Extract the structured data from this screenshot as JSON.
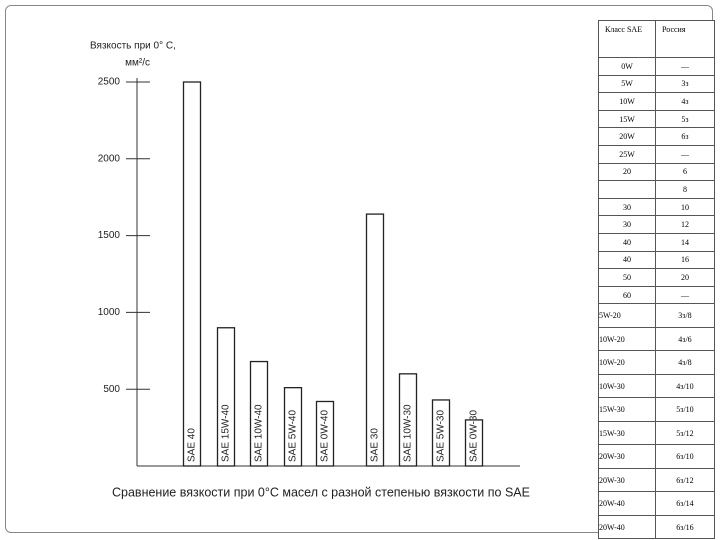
{
  "chart_data": {
    "type": "bar",
    "title": "Сравнение вязкости при 0°С масел с разной степенью вязкости по SAE",
    "y_label": [
      "Вязкость при 0° C,",
      "мм²/с"
    ],
    "categories": [
      "SAE 40",
      "SAE 15W-40",
      "SAE 10W-40",
      "SAE 5W-40",
      "SAE 0W-40",
      "SAE 30",
      "SAE 10W-30",
      "SAE 5W-30",
      "SAE 0W-30"
    ],
    "values": [
      2500,
      900,
      680,
      510,
      420,
      1640,
      600,
      430,
      300
    ],
    "color": "#ffffff",
    "ylim": [
      0,
      2500
    ],
    "yticks": [
      500,
      1000,
      1500,
      2000,
      2500
    ]
  },
  "table": {
    "header": [
      "Класс SAE",
      "Россия"
    ],
    "rows": [
      [
        "0W",
        "—"
      ],
      [
        "5W",
        "3з"
      ],
      [
        "10W",
        "4з"
      ],
      [
        "15W",
        "5з"
      ],
      [
        "20W",
        "6з"
      ],
      [
        "25W",
        "—"
      ],
      [
        "20",
        "6"
      ],
      [
        null,
        "8"
      ],
      [
        "30",
        "10"
      ],
      [
        "30",
        "12"
      ],
      [
        "40",
        "14"
      ],
      [
        "40",
        "16"
      ],
      [
        "50",
        "20"
      ],
      [
        "60",
        "—"
      ],
      [
        "5W-20",
        "3з/8"
      ],
      [
        "10W-20",
        "4з/6"
      ],
      [
        "10W-20",
        "4з/8"
      ],
      [
        "10W-30",
        "4з/10"
      ],
      [
        "15W-30",
        "5з/10"
      ],
      [
        "15W-30",
        "5з/12"
      ],
      [
        "20W-30",
        "6з/10"
      ],
      [
        "20W-30",
        "6з/12"
      ],
      [
        "20W-40",
        "6з/14"
      ],
      [
        "20W-40",
        "6з/16"
      ]
    ]
  }
}
